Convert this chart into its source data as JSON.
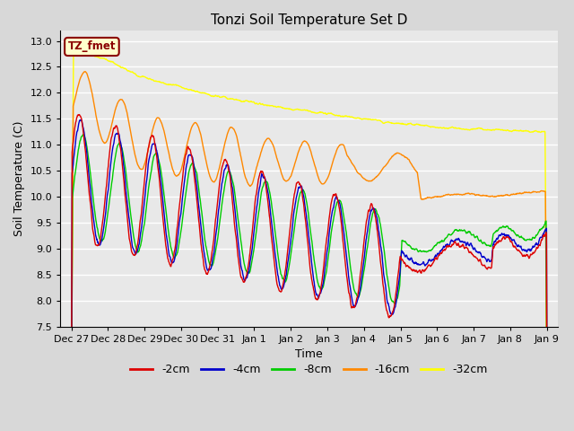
{
  "title": "Tonzi Soil Temperature Set D",
  "xlabel": "Time",
  "ylabel": "Soil Temperature (C)",
  "ylim": [
    7.5,
    13.2
  ],
  "background_color": "#e8e8e8",
  "plot_bg_color": "#e8e8e8",
  "grid_color": "#ffffff",
  "legend_label": "TZ_fmet",
  "legend_box_color": "#ffffcc",
  "legend_box_edge": "#8B0000",
  "series_colors": {
    "-2cm": "#dd0000",
    "-4cm": "#0000cc",
    "-8cm": "#00cc00",
    "-16cm": "#ff8800",
    "-32cm": "#ffff00"
  },
  "yticks": [
    7.5,
    8.0,
    8.5,
    9.0,
    9.5,
    10.0,
    10.5,
    11.0,
    11.5,
    12.0,
    12.5,
    13.0
  ],
  "xtick_labels": [
    "Dec 27",
    "Dec 28",
    "Dec 29",
    "Dec 30",
    "Dec 31",
    "Jan 1",
    "Jan 2",
    "Jan 3",
    "Jan 4",
    "Jan 5",
    "Jan 6",
    "Jan 7",
    "Jan 8",
    "Jan 9"
  ],
  "xtick_positions": [
    0,
    1,
    2,
    3,
    4,
    5,
    6,
    7,
    8,
    9,
    10,
    11,
    12,
    13
  ]
}
